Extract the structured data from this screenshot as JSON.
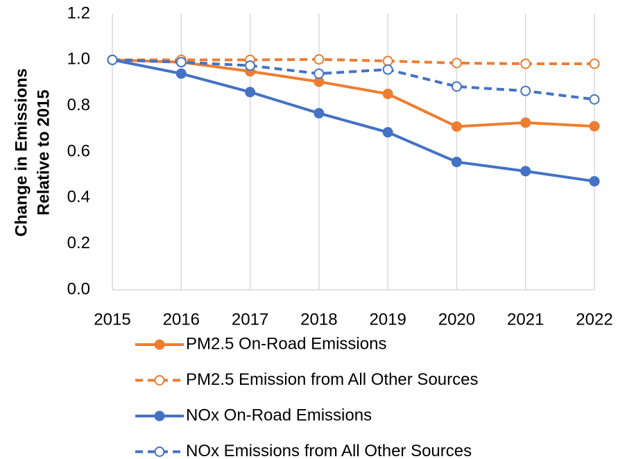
{
  "chart_data": {
    "type": "line",
    "y_label": [
      "Change in Emissions",
      "Relative to 2015"
    ],
    "x": [
      2015,
      2016,
      2017,
      2018,
      2019,
      2020,
      2021,
      2022
    ],
    "xlim": [
      2015,
      2022
    ],
    "xticks": [
      2015,
      2016,
      2017,
      2018,
      2019,
      2020,
      2021,
      2022
    ],
    "ylim": [
      0,
      1.2
    ],
    "yticks": [
      {
        "value": 0,
        "label": "0.0"
      },
      {
        "value": 0.2,
        "label": "0.2"
      },
      {
        "value": 0.4,
        "label": "0.4"
      },
      {
        "value": 0.6,
        "label": "0.6"
      },
      {
        "value": 0.8,
        "label": "0.8"
      },
      {
        "value": 1,
        "label": "1.0"
      },
      {
        "value": 1.2,
        "label": "1.2"
      }
    ],
    "grid": "x",
    "legend": "bottom",
    "series": [
      {
        "name": "PM2.5 On-Road Emissions",
        "color": "#ed7d31",
        "dashed": false,
        "marker": "filled",
        "values": [
          1.0,
          0.99,
          0.95,
          0.905,
          0.852,
          0.71,
          0.727,
          0.711
        ]
      },
      {
        "name": "PM2.5 Emission from All Other Sources",
        "color": "#ed7d31",
        "dashed": true,
        "marker": "open",
        "values": [
          1.0,
          1.0,
          1.0,
          1.002,
          0.995,
          0.986,
          0.983,
          0.983
        ]
      },
      {
        "name": "NOx On-Road Emissions",
        "color": "#4472c4",
        "dashed": false,
        "marker": "filled",
        "values": [
          1.0,
          0.94,
          0.86,
          0.768,
          0.685,
          0.556,
          0.516,
          0.472
        ]
      },
      {
        "name": "NOx Emissions from All Other Sources",
        "color": "#4472c4",
        "dashed": true,
        "marker": "open",
        "values": [
          1.0,
          0.99,
          0.975,
          0.94,
          0.958,
          0.884,
          0.865,
          0.828
        ]
      }
    ]
  }
}
